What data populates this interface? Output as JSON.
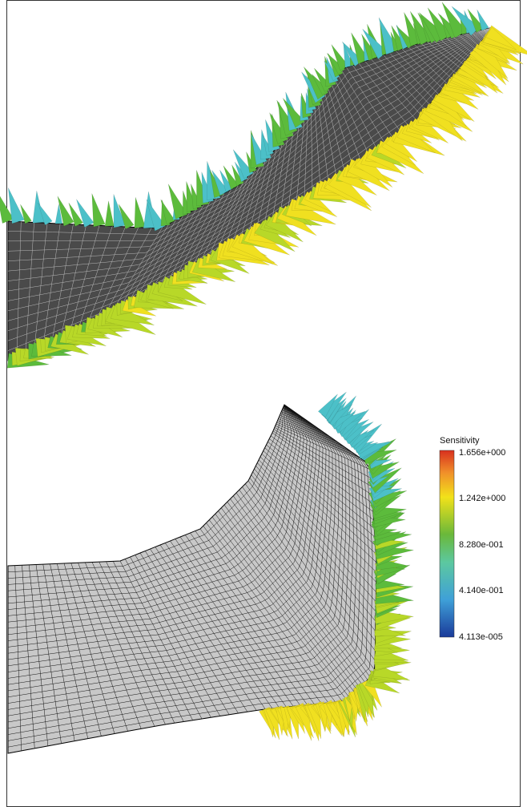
{
  "colorbar": {
    "title": "Sensitivity",
    "labels": [
      "1.656e+000",
      "1.242e+000",
      "8.280e-001",
      "4.140e-001",
      "4.113e-005"
    ]
  }
}
